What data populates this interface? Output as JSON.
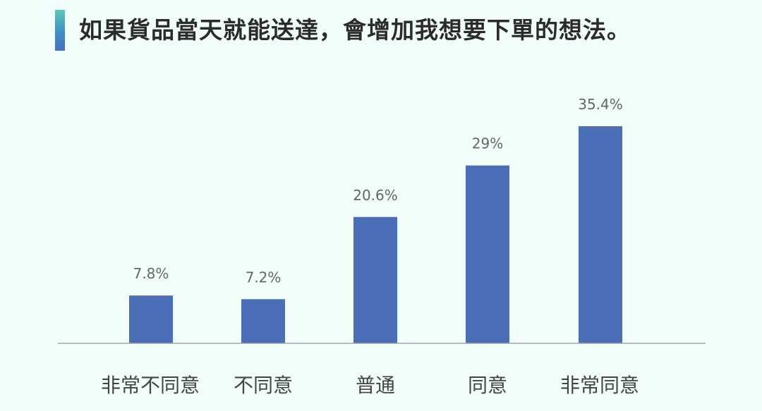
{
  "header": {
    "title": "如果貨品當天就能送達，會增加我想要下單的想法。"
  },
  "colors": {
    "background": "#f0fdfb",
    "bar": "#4a6fb8",
    "accent_top": "#5cc9b8",
    "accent_bottom": "#4a6fbe"
  },
  "chart_data": {
    "type": "bar",
    "title": "如果貨品當天就能送達，會增加我想要下單的想法。",
    "categories": [
      "非常不同意",
      "不同意",
      "普通",
      "同意",
      "非常同意"
    ],
    "values": [
      7.8,
      7.2,
      20.6,
      29,
      35.4
    ],
    "value_labels": [
      "7.8%",
      "7.2%",
      "20.6%",
      "29%",
      "35.4%"
    ],
    "xlabel": "",
    "ylabel": "",
    "ylim": [
      0,
      40
    ],
    "grid": false,
    "legend": "none"
  }
}
